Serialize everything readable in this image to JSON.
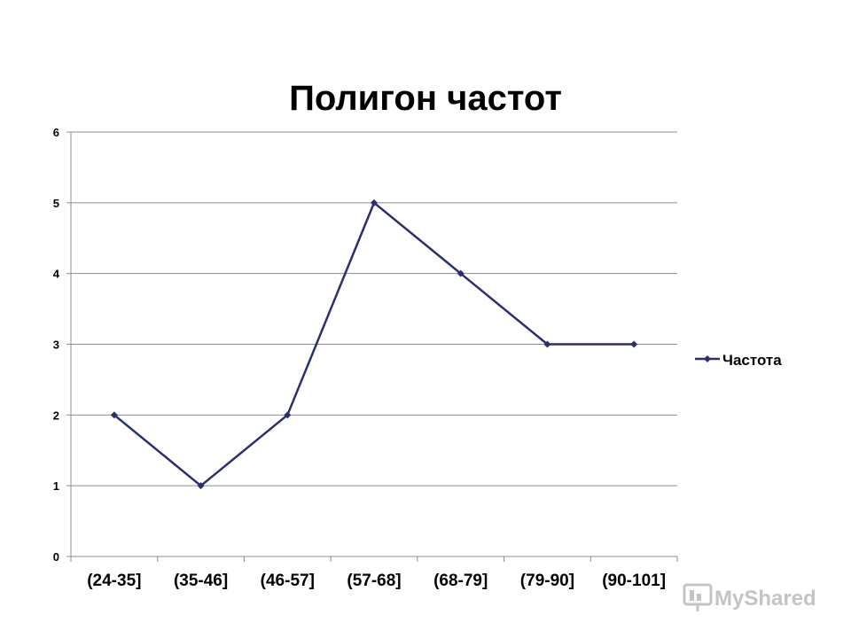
{
  "chart_data": {
    "type": "line",
    "title": "Полигон частот",
    "categories": [
      "(24-35]",
      "(35-46]",
      "(46-57]",
      "(57-68]",
      "(68-79]",
      "(79-90]",
      "(90-101]"
    ],
    "series": [
      {
        "name": "Частота",
        "values": [
          2,
          1,
          2,
          5,
          4,
          3,
          3
        ]
      }
    ],
    "yticks": [
      "0",
      "1",
      "2",
      "3",
      "4",
      "5",
      "6"
    ],
    "ylim": [
      0,
      6
    ],
    "grid": "horizontal",
    "legend": "right",
    "line_color": "#2b2f6e",
    "marker": "diamond"
  },
  "watermark": {
    "text": "MyShared",
    "icon": "presentation-screen-icon"
  }
}
